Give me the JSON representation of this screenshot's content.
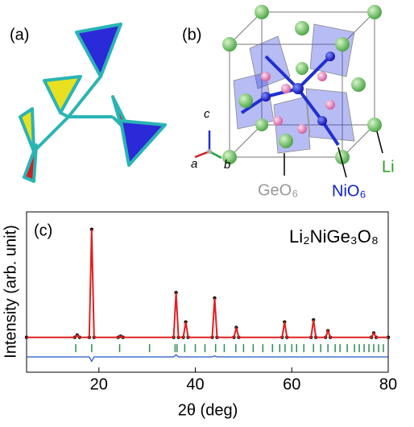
{
  "panel_a": {
    "label": "(a)"
  },
  "panel_b": {
    "label": "(b)",
    "axes": [
      "a",
      "b",
      "c"
    ],
    "annotations": [
      "GeO₆",
      "NiO₆",
      "Li"
    ]
  },
  "chart_data": {
    "type": "line",
    "label": "(c)",
    "title": "Li₂NiGe₃O₈",
    "xlabel": "2θ (deg)",
    "ylabel": "Intensity (arb. unit)",
    "x": [
      5,
      15,
      15.5,
      16,
      18,
      18.5,
      19,
      24,
      24.5,
      25,
      35.5,
      36,
      36.5,
      37.5,
      38,
      38.5,
      43.5,
      44,
      44.5,
      48,
      48.5,
      49,
      58,
      58.5,
      59,
      64,
      64.5,
      65,
      67,
      67.5,
      68,
      76.5,
      77,
      77.5,
      80
    ],
    "series": [
      {
        "color": "#111111",
        "values": [
          1,
          1,
          3,
          1,
          1,
          100,
          1,
          1,
          2,
          1,
          1,
          42,
          1,
          1,
          15,
          1,
          1,
          37,
          1,
          1,
          10,
          1,
          1,
          15,
          1,
          1,
          17,
          1,
          1,
          7,
          1,
          1,
          5,
          1,
          1
        ]
      },
      {
        "color": "#e02020",
        "values": [
          1,
          1,
          3,
          1,
          1,
          100,
          1,
          1,
          2,
          1,
          1,
          42,
          1,
          1,
          15,
          1,
          1,
          37,
          1,
          1,
          10,
          1,
          1,
          15,
          1,
          1,
          17,
          1,
          1,
          7,
          1,
          1,
          5,
          1,
          1
        ]
      },
      {
        "color": "#2050d0",
        "values": [
          -17,
          -17,
          -17,
          -17,
          -17,
          -21,
          -17,
          -17,
          -17,
          -17,
          -17,
          -15,
          -17,
          -17,
          -17,
          -17,
          -17,
          -16,
          -17,
          -17,
          -17,
          -17,
          -17,
          -17,
          -17,
          -17,
          -17,
          -17,
          -17,
          -17,
          -17,
          -17,
          -17,
          -17,
          -17
        ]
      }
    ],
    "bragg_positions": [
      15.2,
      18.5,
      24.3,
      30.5,
      35.8,
      36.2,
      37.8,
      40,
      42,
      44.2,
      46,
      48.4,
      50,
      52,
      54,
      56,
      57.5,
      58.6,
      60,
      61,
      62.5,
      64.5,
      66,
      67.5,
      69,
      70,
      71.5,
      73,
      74,
      75,
      76,
      77,
      78,
      79
    ],
    "bragg_color": "#2e8b57",
    "xlim": [
      5,
      80
    ],
    "ylim": [
      -31,
      116
    ],
    "xticks": [
      20,
      40,
      60,
      80
    ]
  }
}
